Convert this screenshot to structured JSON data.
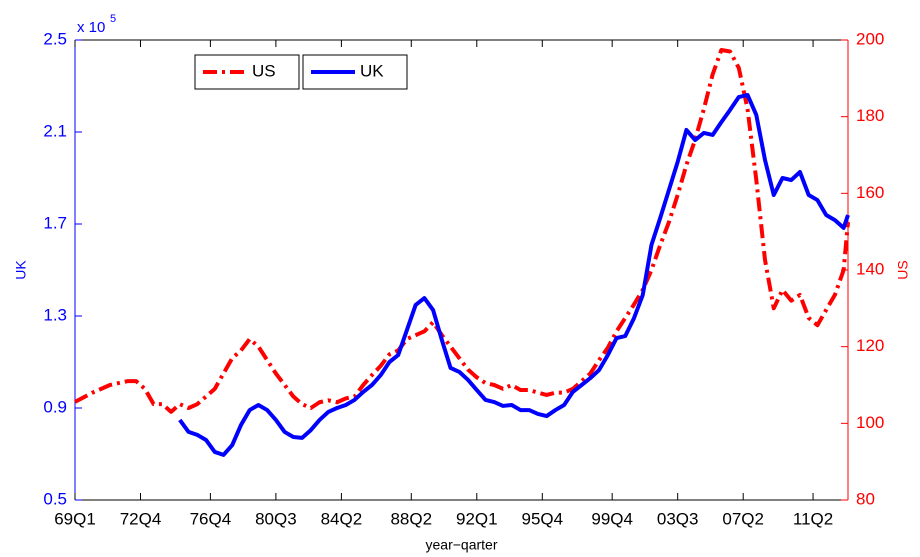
{
  "chart_data": {
    "type": "line",
    "x_label": "year−qarter",
    "y_label": "UK",
    "y2_label": "US",
    "y_multiplier": "x 10",
    "y_multiplier_exponent": "5",
    "xlim": [
      0,
      177
    ],
    "xticks": [
      {
        "value": 0,
        "label": "69Q1"
      },
      {
        "value": 15,
        "label": "72Q4"
      },
      {
        "value": 31,
        "label": "76Q4"
      },
      {
        "value": 46,
        "label": "80Q3"
      },
      {
        "value": 61,
        "label": "84Q2"
      },
      {
        "value": 77,
        "label": "88Q2"
      },
      {
        "value": 92,
        "label": "92Q1"
      },
      {
        "value": 107,
        "label": "95Q4"
      },
      {
        "value": 123,
        "label": "99Q4"
      },
      {
        "value": 138,
        "label": "03Q3"
      },
      {
        "value": 153,
        "label": "07Q2"
      },
      {
        "value": 169,
        "label": "11Q2"
      }
    ],
    "ylim": [
      0.5,
      2.5
    ],
    "yticks": [
      0.5,
      0.9,
      1.3,
      1.7,
      2.1,
      2.5
    ],
    "y2lim": [
      80,
      200
    ],
    "y2ticks": [
      80,
      100,
      120,
      140,
      160,
      180,
      200
    ],
    "y_color": "#0000ff",
    "y2_color": "#ff0000",
    "x": [
      0,
      4,
      8,
      12,
      14,
      16,
      18,
      20,
      22,
      24,
      26,
      28,
      30,
      32,
      34,
      36,
      38,
      40,
      42,
      44,
      46,
      48,
      50,
      52,
      54,
      56,
      58,
      60,
      62,
      64,
      66,
      68,
      70,
      72,
      74,
      76,
      78,
      80,
      82,
      84,
      86,
      88,
      90,
      92,
      94,
      96,
      98,
      100,
      102,
      104,
      106,
      108,
      110,
      112,
      114,
      116,
      118,
      120,
      122,
      124,
      126,
      128,
      130,
      132,
      134,
      136,
      138,
      140,
      142,
      144,
      146,
      148,
      150,
      152,
      154,
      156,
      158,
      160,
      162,
      164,
      166,
      168,
      170,
      172,
      174,
      176,
      177
    ],
    "series": [
      {
        "name": "US",
        "color": "#ff0000",
        "axis": "y2",
        "dash": "dashdot",
        "values": [
          105.6,
          108,
          110,
          111,
          111,
          109,
          105,
          105,
          103,
          105,
          104,
          105,
          107,
          109,
          113,
          117,
          119,
          122,
          120,
          116.5,
          113,
          110,
          107,
          105,
          104,
          105.5,
          106,
          105.5,
          106.5,
          107,
          110,
          112.6,
          115,
          118,
          119,
          122,
          123,
          124,
          126.4,
          123,
          120,
          117,
          114,
          112,
          110.5,
          110,
          109,
          110,
          108.7,
          108.7,
          108,
          107.4,
          108,
          108,
          109,
          111,
          113,
          116.5,
          119.7,
          124,
          127.5,
          131,
          134.8,
          140,
          146.5,
          152.5,
          159.6,
          167.4,
          174,
          182,
          191,
          197.4,
          197,
          192.7,
          182,
          163.5,
          142.6,
          130,
          134.8,
          132,
          133.5,
          127.5,
          125.6,
          129.6,
          133.5,
          140,
          152.5
        ]
      },
      {
        "name": "UK",
        "color": "#0000ff",
        "dash": "solid",
        "values": [
          null,
          null,
          null,
          null,
          null,
          null,
          null,
          null,
          null,
          0.848,
          0.796,
          0.783,
          0.761,
          0.709,
          0.696,
          0.739,
          0.826,
          0.891,
          0.913,
          0.891,
          0.848,
          0.796,
          0.774,
          0.77,
          0.804,
          0.848,
          0.883,
          0.9,
          0.913,
          0.935,
          0.97,
          1.0,
          1.043,
          1.1,
          1.13,
          1.239,
          1.348,
          1.378,
          1.326,
          1.196,
          1.074,
          1.057,
          1.022,
          0.978,
          0.935,
          0.926,
          0.909,
          0.913,
          0.891,
          0.891,
          0.874,
          0.865,
          0.891,
          0.913,
          0.97,
          1.0,
          1.03,
          1.065,
          1.13,
          1.204,
          1.213,
          1.291,
          1.391,
          1.609,
          1.726,
          1.848,
          1.97,
          2.109,
          2.065,
          2.096,
          2.087,
          2.143,
          2.196,
          2.252,
          2.261,
          2.174,
          1.978,
          1.826,
          1.9,
          1.891,
          1.926,
          1.826,
          1.804,
          1.739,
          1.717,
          1.683,
          1.739
        ]
      }
    ]
  }
}
